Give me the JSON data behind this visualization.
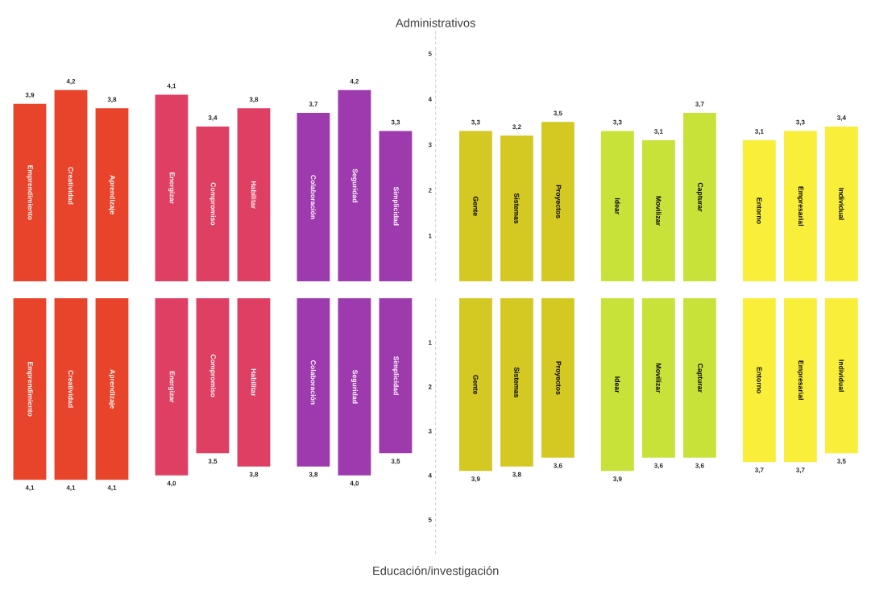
{
  "chart_data": [
    {
      "type": "bar",
      "title": "Administrativos",
      "categories": [
        "Emprendimiento",
        "Creatividad",
        "Aprendizaje",
        "Energizar",
        "Compromiso",
        "Habilitar",
        "Colaboración",
        "Seguridad",
        "Simplicidad",
        "Gente",
        "Sistemas",
        "Proyectos",
        "Idear",
        "Movilizar",
        "Capturar",
        "Entorno",
        "Empresarial",
        "Individual"
      ],
      "values": [
        3.9,
        4.2,
        3.8,
        4.1,
        3.4,
        3.8,
        3.7,
        4.2,
        3.3,
        3.3,
        3.2,
        3.5,
        3.3,
        3.1,
        3.7,
        3.1,
        3.3,
        3.4
      ],
      "value_labels": [
        "3,9",
        "4,2",
        "3,8",
        "4,1",
        "3,4",
        "3,8",
        "3,7",
        "4,2",
        "3,3",
        "3,3",
        "3,2",
        "3,5",
        "3,3",
        "3,1",
        "3,7",
        "3,1",
        "3,3",
        "3,4"
      ],
      "colors": [
        "#e8432b",
        "#e8432b",
        "#e8432b",
        "#de3f63",
        "#de3f63",
        "#de3f63",
        "#9d3aad",
        "#9d3aad",
        "#9d3aad",
        "#d4c822",
        "#d4c822",
        "#d4c822",
        "#c8e23a",
        "#c8e23a",
        "#c8e23a",
        "#f9ee3a",
        "#f9ee3a",
        "#f9ee3a"
      ],
      "ylim": [
        0,
        5.5
      ],
      "yticks": [
        1,
        2,
        3,
        4,
        5
      ]
    },
    {
      "type": "bar",
      "xlabel": "Educación/investigación",
      "categories": [
        "Emprendimiento",
        "Creatividad",
        "Aprendizaje",
        "Energizar",
        "Compromiso",
        "Habilitar",
        "Colaboración",
        "Seguridad",
        "Simplicidad",
        "Gente",
        "Sistemas",
        "Proyectos",
        "Idear",
        "Movilizar",
        "Capturar",
        "Entorno",
        "Empresarial",
        "Individual"
      ],
      "values": [
        4.1,
        4.1,
        4.1,
        4.0,
        3.5,
        3.8,
        3.8,
        4.0,
        3.5,
        3.9,
        3.8,
        3.6,
        3.9,
        3.6,
        3.6,
        3.7,
        3.7,
        3.5
      ],
      "value_labels": [
        "4,1",
        "4,1",
        "4,1",
        "4,0",
        "3,5",
        "3,8",
        "3,8",
        "4,0",
        "3,5",
        "3,9",
        "3,8",
        "3,6",
        "3,9",
        "3,6",
        "3,6",
        "3,7",
        "3,7",
        "3,5"
      ],
      "colors": [
        "#e8432b",
        "#e8432b",
        "#e8432b",
        "#de3f63",
        "#de3f63",
        "#de3f63",
        "#9d3aad",
        "#9d3aad",
        "#9d3aad",
        "#d4c822",
        "#d4c822",
        "#d4c822",
        "#c8e23a",
        "#c8e23a",
        "#c8e23a",
        "#f9ee3a",
        "#f9ee3a",
        "#f9ee3a"
      ],
      "ylim": [
        5.8,
        0
      ],
      "yticks": [
        1,
        2,
        3,
        4,
        5
      ]
    }
  ]
}
